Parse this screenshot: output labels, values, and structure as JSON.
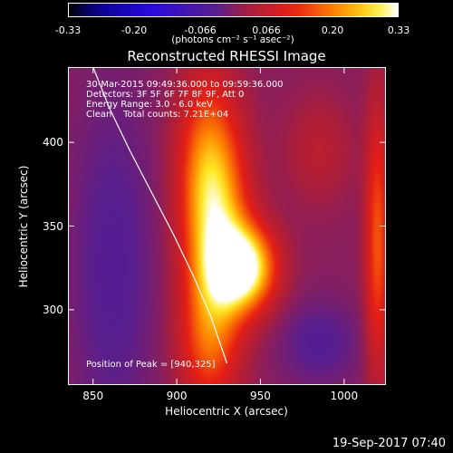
{
  "colorbar": {
    "ticks": [
      "-0.33",
      "-0.20",
      "-0.066",
      "0.066",
      "0.20",
      "0.33"
    ],
    "label": "(photons cm⁻² s⁻¹ asec⁻²)"
  },
  "chart_data": {
    "type": "heatmap",
    "title": "Reconstructed RHESSI Image",
    "xlabel": "Heliocentric X (arcsec)",
    "ylabel": "Heliocentric Y (arcsec)",
    "xlim": [
      835,
      1025
    ],
    "ylim": [
      255,
      445
    ],
    "x_ticks": [
      850,
      900,
      950,
      1000
    ],
    "y_ticks": [
      300,
      350,
      400
    ],
    "color_range": [
      -0.33,
      0.33
    ],
    "colormap": "black-blue-purple-red-yellow-white",
    "info_lines": [
      "30-Mar-2015 09:49:36.000 to 09:59:36.000",
      "Detectors: 3F 5F 6F 7F 8F 9F, Att 0",
      "Energy Range: 3.0 - 6.0 keV",
      "Clean    Total counts: 7.21E+04"
    ],
    "peak_label": "Position of Peak = [940,325]",
    "peak": [
      940,
      325
    ],
    "sources": [
      {
        "x": 940,
        "y": 325,
        "sx": 13,
        "sy": 17,
        "amp": 0.33
      },
      {
        "x": 925,
        "y": 345,
        "sx": 13,
        "sy": 45,
        "amp": 0.22
      },
      {
        "x": 917,
        "y": 385,
        "sx": 12,
        "sy": 40,
        "amp": 0.14
      },
      {
        "x": 918,
        "y": 280,
        "sx": 12,
        "sy": 28,
        "amp": 0.12
      },
      {
        "x": 1020,
        "y": 340,
        "sx": 5,
        "sy": 55,
        "amp": 0.16
      },
      {
        "x": 985,
        "y": 395,
        "sx": 14,
        "sy": 22,
        "amp": 0.05
      }
    ],
    "troughs": [
      {
        "x": 862,
        "y": 325,
        "sx": 17,
        "sy": 75,
        "amp": -0.05
      },
      {
        "x": 985,
        "y": 280,
        "sx": 16,
        "sy": 17,
        "amp": -0.05
      }
    ],
    "limb_curve": {
      "x": [
        850,
        860,
        872,
        885,
        898,
        910,
        920,
        930
      ],
      "y": [
        445,
        420,
        395,
        370,
        345,
        320,
        297,
        268
      ]
    }
  },
  "timestamp": "19-Sep-2017 07:40"
}
